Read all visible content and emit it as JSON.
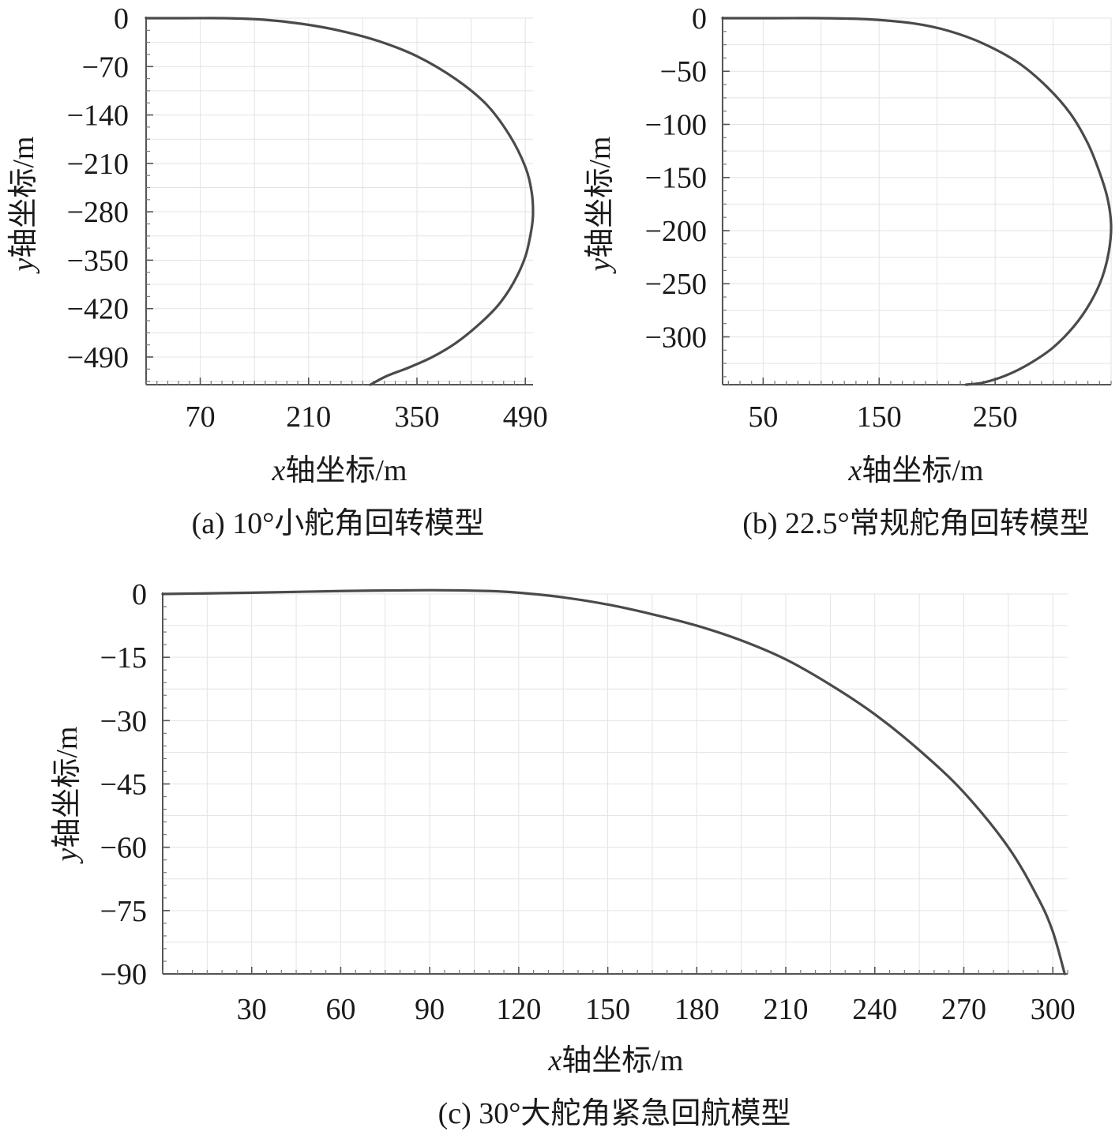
{
  "chart_data": [
    {
      "id": "a",
      "type": "line",
      "caption": "(a) 10°小舵角回转模型",
      "xlabel_italic": "x",
      "xlabel_rest": "轴坐标/m",
      "ylabel_italic": "y",
      "ylabel_rest": "轴坐标/m",
      "xlim": [
        0,
        500
      ],
      "ylim": [
        -530,
        0
      ],
      "x_ticks": [
        70,
        210,
        350,
        490
      ],
      "x_tick_labels": [
        "70",
        "210",
        "350",
        "490"
      ],
      "y_ticks": [
        0,
        -70,
        -140,
        -210,
        -280,
        -350,
        -420,
        -490
      ],
      "y_tick_labels": [
        "0",
        "−70",
        "−140",
        "−210",
        "−280",
        "−350",
        "−420",
        "−490"
      ],
      "grid": true,
      "series": [
        {
          "x": [
            0,
            50,
            100,
            150,
            200,
            250,
            300,
            350,
            400,
            440,
            470,
            490,
            498,
            500,
            498,
            490,
            475,
            455,
            430,
            400,
            370,
            340,
            310,
            290
          ],
          "y": [
            0,
            0,
            0,
            -2,
            -8,
            -18,
            -33,
            -55,
            -88,
            -125,
            -170,
            -215,
            -250,
            -280,
            -305,
            -345,
            -382,
            -415,
            -443,
            -470,
            -490,
            -505,
            -518,
            -530
          ]
        }
      ]
    },
    {
      "id": "b",
      "type": "line",
      "caption": "(b) 22.5°常规舵角回转模型",
      "xlabel_italic": "x",
      "xlabel_rest": "轴坐标/m",
      "ylabel_italic": "y",
      "ylabel_rest": "轴坐标/m",
      "xlim": [
        15,
        350
      ],
      "ylim": [
        -345,
        0
      ],
      "x_ticks": [
        50,
        150,
        250
      ],
      "x_tick_labels": [
        "50",
        "150",
        "250"
      ],
      "y_ticks": [
        0,
        -50,
        -100,
        -150,
        -200,
        -250,
        -300
      ],
      "y_tick_labels": [
        "0",
        "−50",
        "−100",
        "−150",
        "−200",
        "−250",
        "−300"
      ],
      "grid": true,
      "series": [
        {
          "x": [
            15,
            60,
            100,
            140,
            180,
            210,
            240,
            270,
            295,
            315,
            330,
            340,
            347,
            350,
            348,
            342,
            332,
            318,
            300,
            280,
            260,
            240,
            225
          ],
          "y": [
            0,
            0,
            0,
            -1,
            -5,
            -12,
            -24,
            -42,
            -65,
            -90,
            -118,
            -145,
            -170,
            -195,
            -220,
            -245,
            -268,
            -290,
            -310,
            -325,
            -336,
            -343,
            -345
          ]
        }
      ]
    },
    {
      "id": "c",
      "type": "line",
      "caption": "(c) 30°大舵角紧急回航模型",
      "xlabel_italic": "x",
      "xlabel_rest": "轴坐标/m",
      "ylabel_italic": "y",
      "ylabel_rest": "轴坐标/m",
      "xlim": [
        0,
        305
      ],
      "ylim": [
        -90,
        0
      ],
      "x_ticks": [
        30,
        60,
        90,
        120,
        150,
        180,
        210,
        240,
        270,
        300
      ],
      "x_tick_labels": [
        "30",
        "60",
        "90",
        "120",
        "150",
        "180",
        "210",
        "240",
        "270",
        "300"
      ],
      "y_ticks": [
        0,
        -15,
        -30,
        -45,
        -60,
        -75,
        -90
      ],
      "y_tick_labels": [
        "0",
        "−15",
        "−30",
        "−45",
        "−60",
        "−75",
        "−90"
      ],
      "grid": true,
      "series": [
        {
          "x": [
            0,
            30,
            60,
            90,
            110,
            120,
            135,
            150,
            165,
            180,
            195,
            210,
            225,
            240,
            255,
            270,
            285,
            295,
            300,
            304
          ],
          "y": [
            0,
            0.3,
            0.7,
            0.9,
            0.7,
            0.3,
            -0.8,
            -2.5,
            -4.8,
            -7.5,
            -11,
            -15.5,
            -21.5,
            -28.5,
            -37,
            -47,
            -60,
            -72,
            -80,
            -90
          ]
        }
      ]
    }
  ]
}
